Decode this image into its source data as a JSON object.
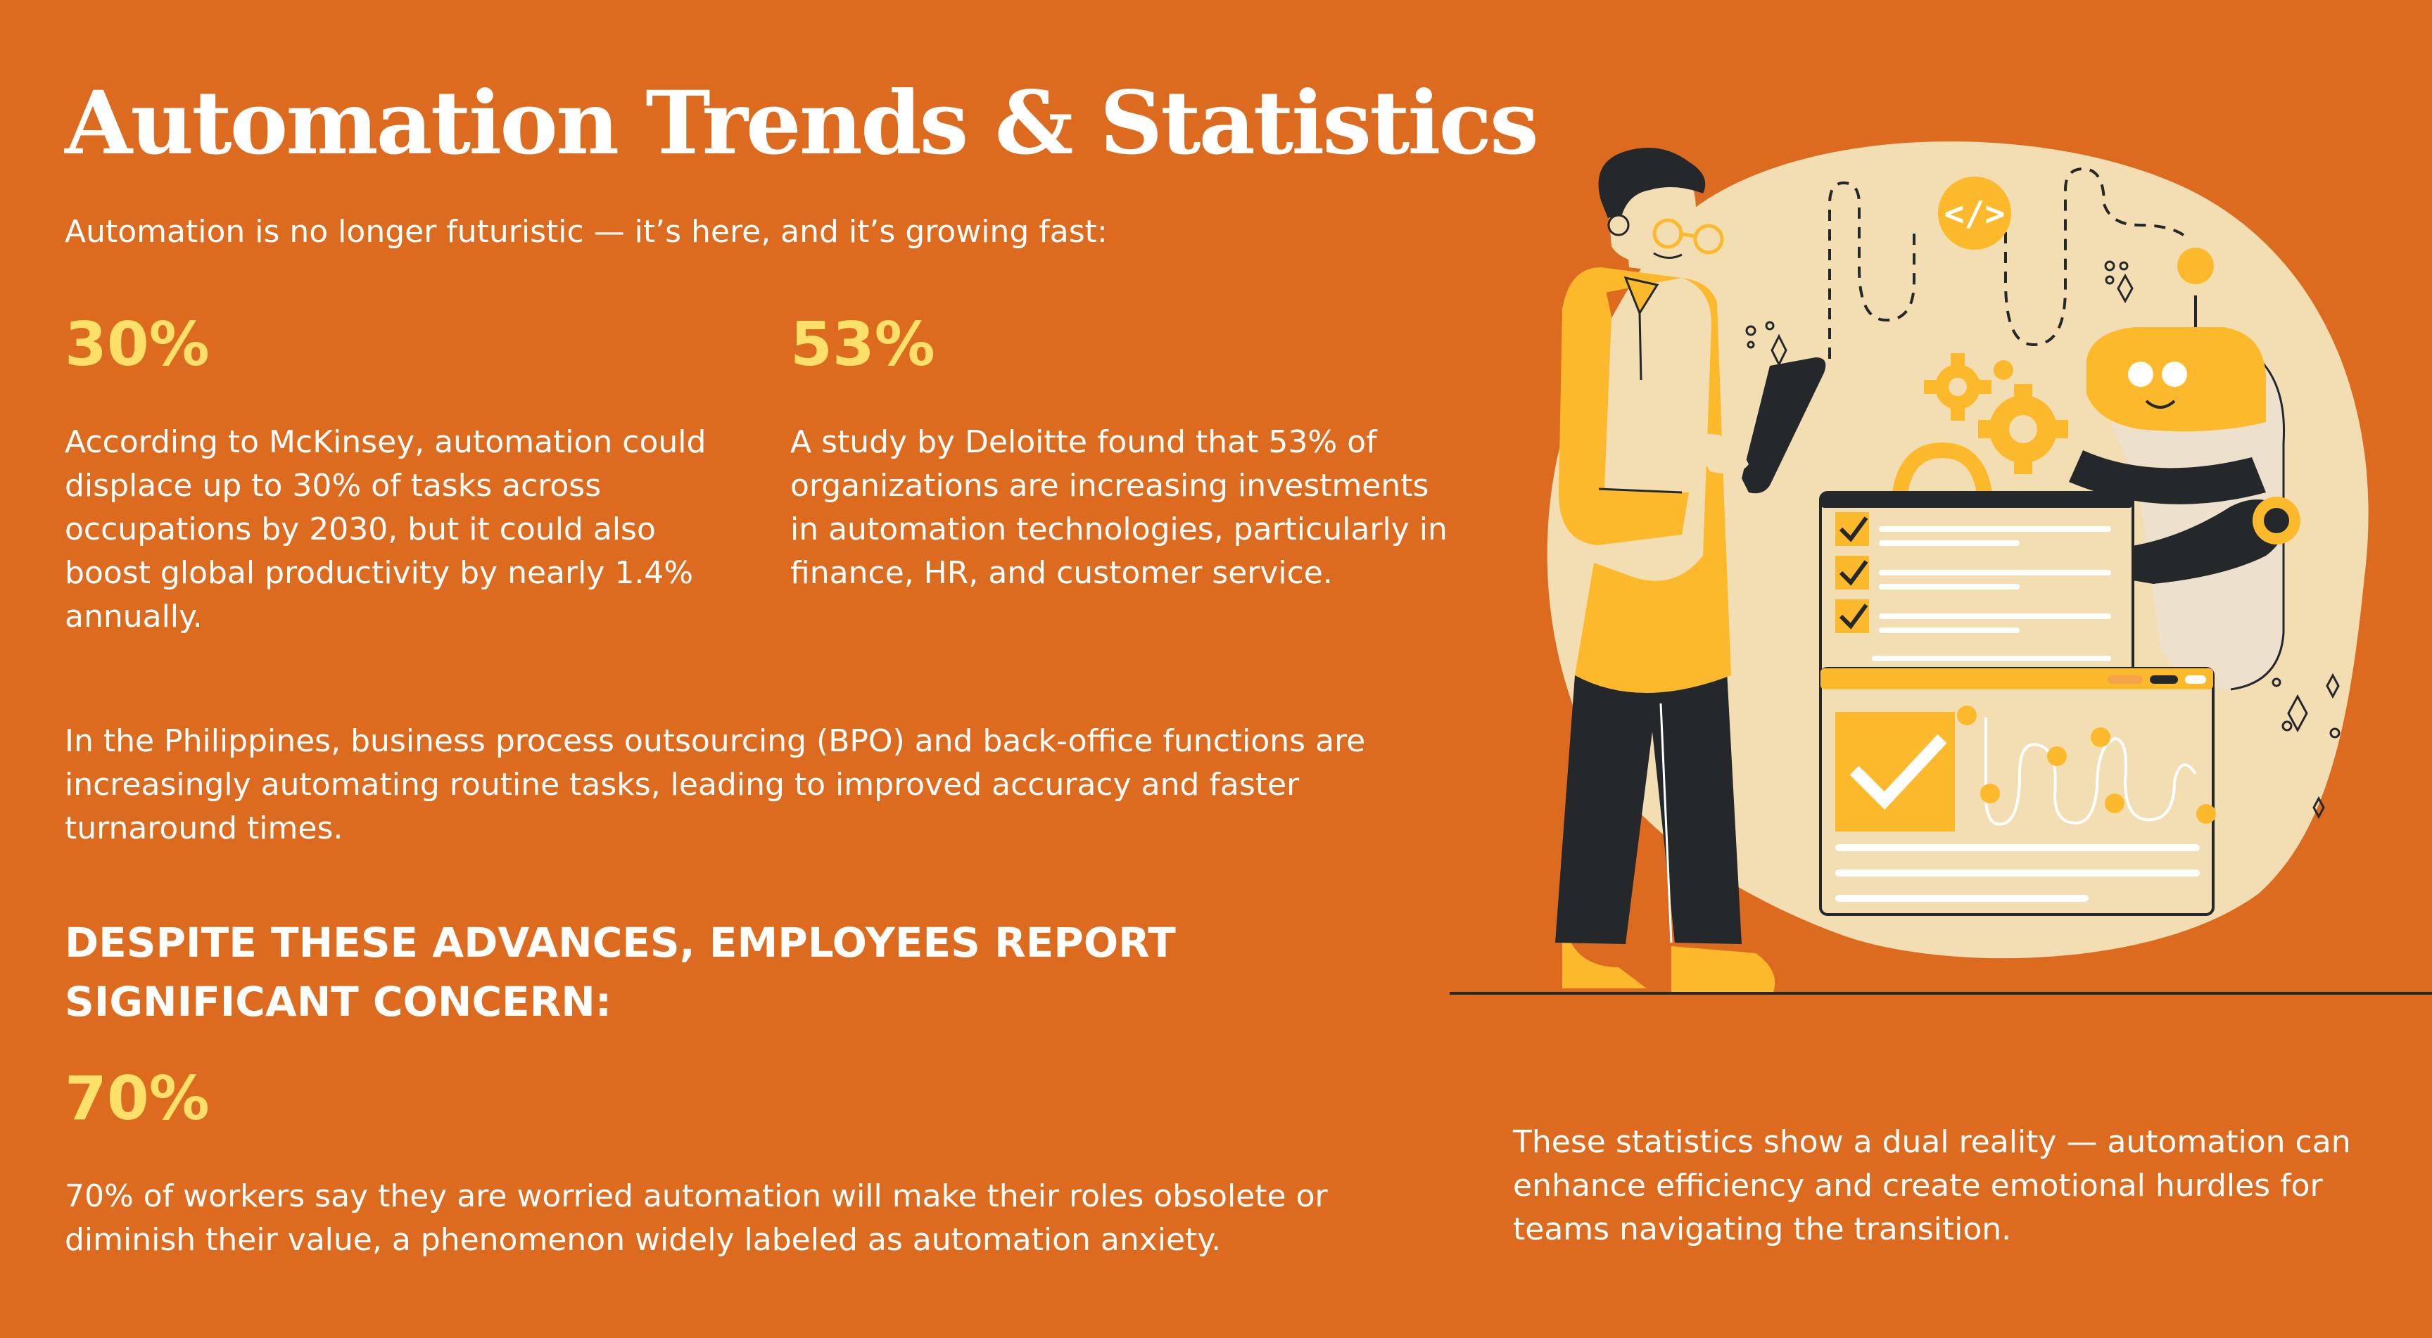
{
  "title": "Automation Trends & Statistics",
  "intro": "Automation is no longer futuristic — it’s here, and it’s growing fast:",
  "stats": [
    {
      "value": "30%",
      "text": "According to McKinsey, automation could displace up to 30% of tasks across occupations by 2030, but it could also boost global productivity by nearly 1.4% annually."
    },
    {
      "value": "53%",
      "text": "A study by Deloitte found that 53% of organizations are increasing investments in automation technologies, particularly in finance, HR, and customer service."
    }
  ],
  "philippines_text": "In the Philippines, business process outsourcing (BPO) and back-office functions are increasingly automating routine tasks, leading to improved accuracy and faster turnaround times.",
  "concern_heading": "DESPITE THESE ADVANCES, EMPLOYEES REPORT SIGNIFICANT CONCERN:",
  "concern_stat": {
    "value": "70%",
    "text": "70% of workers say they are worried automation will make their roles obsolete or diminish their value, a phenomenon widely labeled as automation anxiety."
  },
  "conclusion": "These statistics show a dual reality — automation can enhance efficiency and create emotional hurdles for teams navigating the transition.",
  "illustration": {
    "code_badge": "</>",
    "description_icons": [
      "person-with-tablet-icon",
      "robot-icon",
      "gear-icon",
      "checklist-window-icon",
      "chart-window-icon",
      "code-badge-icon"
    ]
  },
  "colors": {
    "background": "#DD6B1F",
    "stat_yellow": "#FDE06A",
    "illustration_yellow": "#FCB92C",
    "illustration_cream": "#F3DDB2",
    "outline_dark": "#25282B",
    "text": "#FFFFFF"
  }
}
